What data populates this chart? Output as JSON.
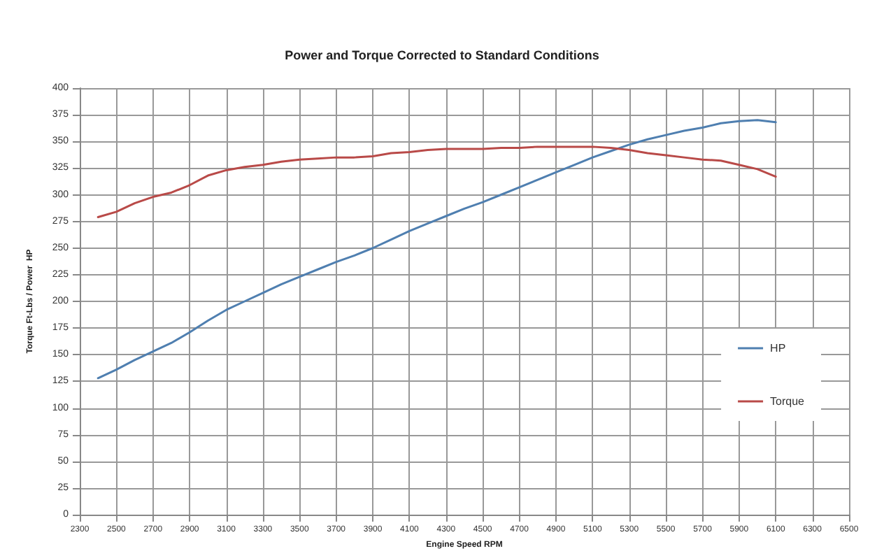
{
  "chart_data": {
    "type": "line",
    "title": "Power and Torque Corrected to Standard Conditions",
    "xlabel": "Engine Speed RPM",
    "ylabel": "Torque Ft-Lbs / Power  HP",
    "x": [
      2400,
      2500,
      2600,
      2700,
      2800,
      2900,
      3000,
      3100,
      3200,
      3300,
      3400,
      3500,
      3600,
      3700,
      3800,
      3900,
      4000,
      4100,
      4200,
      4300,
      4400,
      4500,
      4600,
      4700,
      4800,
      4900,
      5000,
      5100,
      5200,
      5300,
      5400,
      5500,
      5600,
      5700,
      5800,
      5900,
      6000,
      6100
    ],
    "series": [
      {
        "name": "HP",
        "color": "#4f7fb0",
        "values": [
          128,
          136,
          145,
          153,
          161,
          171,
          182,
          192,
          200,
          208,
          216,
          223,
          230,
          237,
          243,
          250,
          258,
          266,
          273,
          280,
          287,
          293,
          300,
          307,
          314,
          321,
          328,
          335,
          341,
          347,
          352,
          356,
          360,
          363,
          367,
          369,
          370,
          368
        ]
      },
      {
        "name": "Torque",
        "color": "#b94a48",
        "values": [
          279,
          284,
          292,
          298,
          302,
          309,
          318,
          323,
          326,
          328,
          331,
          333,
          334,
          335,
          335,
          336,
          339,
          340,
          342,
          343,
          343,
          343,
          344,
          344,
          345,
          345,
          345,
          345,
          344,
          342,
          339,
          337,
          335,
          333,
          332,
          328,
          324,
          317
        ]
      }
    ],
    "xlim": [
      2300,
      6500
    ],
    "xticks": [
      2300,
      2500,
      2700,
      2900,
      3100,
      3300,
      3500,
      3700,
      3900,
      4100,
      4300,
      4500,
      4700,
      4900,
      5100,
      5300,
      5500,
      5700,
      5900,
      6100,
      6300,
      6500
    ],
    "ylim": [
      0,
      400
    ],
    "yticks": [
      0,
      25,
      50,
      75,
      100,
      125,
      150,
      175,
      200,
      225,
      250,
      275,
      300,
      325,
      350,
      375,
      400
    ],
    "grid": true,
    "legend": "right",
    "marker": "none",
    "line_style": "solid"
  }
}
